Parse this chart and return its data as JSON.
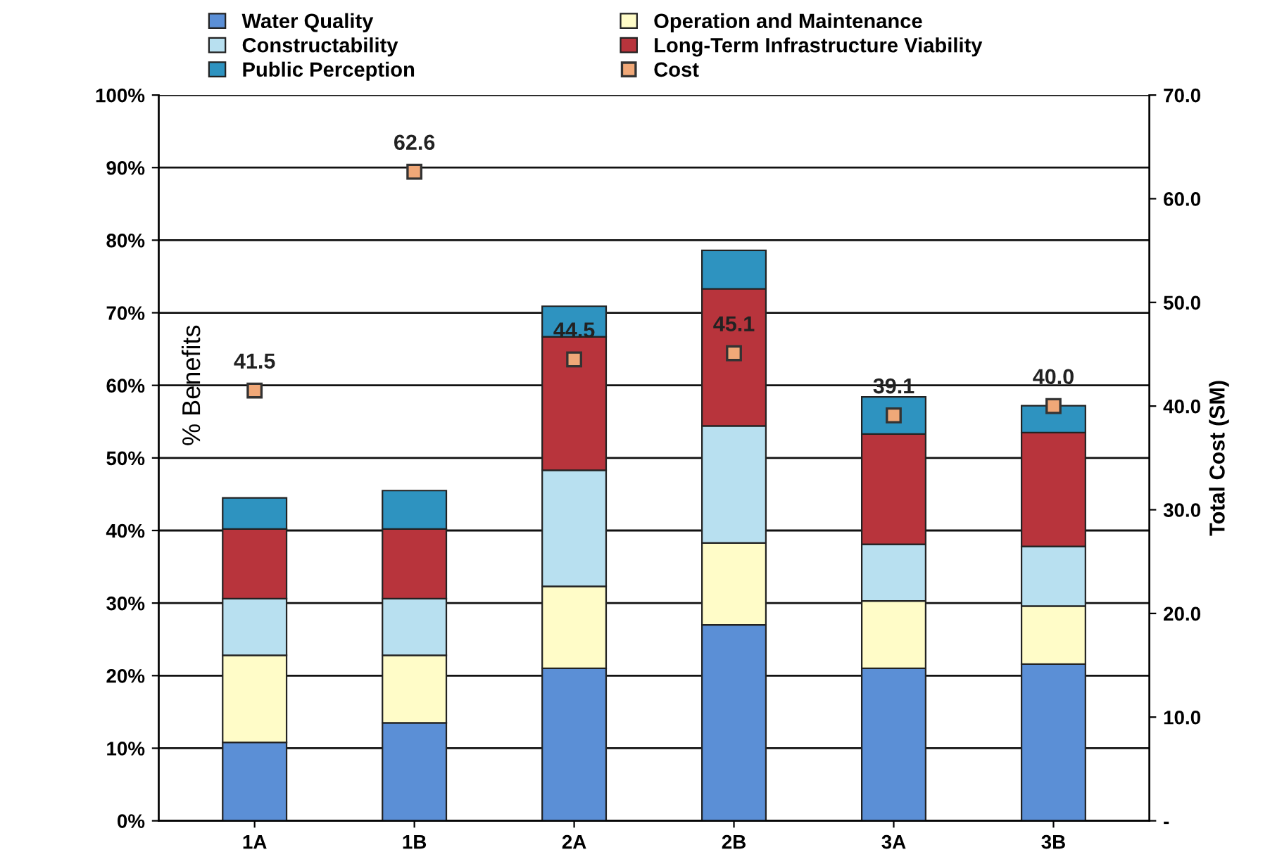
{
  "chart_data": {
    "type": "bar",
    "stacked": true,
    "categories": [
      "1A",
      "1B",
      "2A",
      "2B",
      "3A",
      "3B"
    ],
    "ylabel": "% Benefits",
    "y2label": "Total Cost (SM)",
    "ylim": [
      0,
      100
    ],
    "yticks": [
      {
        "value": 0,
        "label": "0%"
      },
      {
        "value": 10,
        "label": "10%"
      },
      {
        "value": 20,
        "label": "20%"
      },
      {
        "value": 30,
        "label": "30%"
      },
      {
        "value": 40,
        "label": "40%"
      },
      {
        "value": 50,
        "label": "50%"
      },
      {
        "value": 60,
        "label": "60%"
      },
      {
        "value": 70,
        "label": "70%"
      },
      {
        "value": 80,
        "label": "80%"
      },
      {
        "value": 90,
        "label": "90%"
      },
      {
        "value": 100,
        "label": "100%"
      }
    ],
    "y2lim": [
      0,
      70
    ],
    "y2ticks": [
      {
        "value": 0,
        "label": "-"
      },
      {
        "value": 10,
        "label": "10.0"
      },
      {
        "value": 20,
        "label": "20.0"
      },
      {
        "value": 30,
        "label": "30.0"
      },
      {
        "value": 40,
        "label": "40.0"
      },
      {
        "value": 50,
        "label": "50.0"
      },
      {
        "value": 60,
        "label": "60.0"
      },
      {
        "value": 70,
        "label": "70.0"
      }
    ],
    "grid": "y",
    "legend": "top",
    "series": [
      {
        "name": "Water Quality",
        "color": "#5b8fd6",
        "values": [
          10.8,
          13.5,
          21.0,
          27.0,
          21.0,
          21.6
        ]
      },
      {
        "name": "Operation and Maintenance",
        "color": "#fffcc8",
        "values": [
          12.0,
          9.3,
          11.3,
          11.3,
          9.3,
          8.0
        ]
      },
      {
        "name": "Constructability",
        "color": "#b8e0f0",
        "values": [
          7.8,
          7.8,
          16.0,
          16.1,
          7.8,
          8.2
        ]
      },
      {
        "name": "Long-Term Infrastructure Viability",
        "color": "#b8343c",
        "values": [
          9.6,
          9.6,
          18.4,
          18.9,
          15.2,
          15.7
        ]
      },
      {
        "name": "Public Perception",
        "color": "#2e93c0",
        "values": [
          4.3,
          5.3,
          4.2,
          5.3,
          5.1,
          3.7
        ]
      },
      {
        "name": "Cost",
        "type": "scatter",
        "axis": "y2",
        "marker": "square",
        "color": "#f0a878",
        "values": [
          41.5,
          62.6,
          44.5,
          45.1,
          39.1,
          40.0
        ],
        "value_labels": [
          "41.5",
          "62.6",
          "44.5",
          "45.1",
          "39.1",
          "40.0"
        ]
      }
    ]
  }
}
